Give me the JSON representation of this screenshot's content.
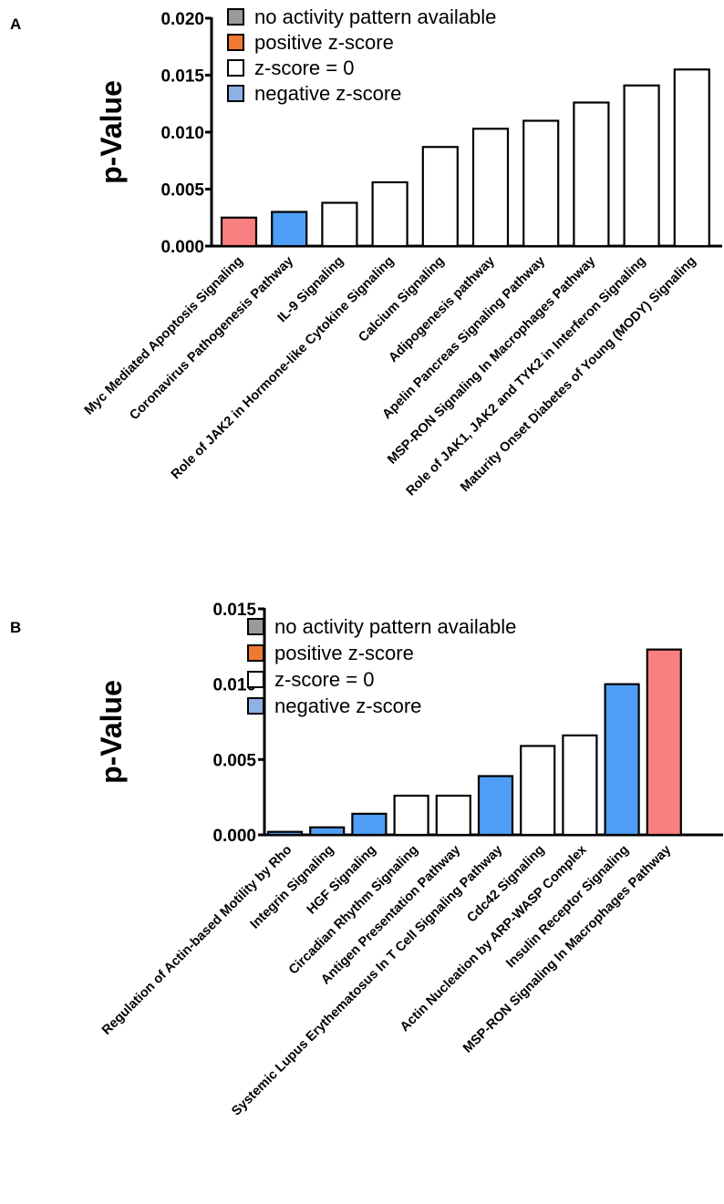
{
  "legend": {
    "items": [
      {
        "label": "no activity pattern available",
        "color": "#9a9a9a"
      },
      {
        "label": "positive z-score",
        "color": "#f07a32"
      },
      {
        "label": "z-score = 0",
        "color": "#ffffff"
      },
      {
        "label": "negative z-score",
        "color": "#8fb2e6"
      }
    ]
  },
  "chart_data": [
    {
      "panel": "A",
      "type": "bar",
      "ylabel": "p-Value",
      "ylim": [
        0,
        0.02
      ],
      "yticks": [
        "0.000",
        "0.005",
        "0.010",
        "0.015",
        "0.020"
      ],
      "grid": false,
      "legend_position": "top-left",
      "categories": [
        "Myc Mediated Apoptosis Signaling",
        "Coronavirus Pathogenesis Pathway",
        "IL-9 Signaling",
        "Role of JAK2 in Hormone-like Cytokine Signaling",
        "Calcium Signaling",
        "Adipogenesis pathway",
        "Apelin Pancreas Signaling Pathway",
        "MSP-RON Signaling In Macrophages Pathway",
        "Role of JAK1, JAK2 and TYK2 in Interferon Signaling",
        "Maturity Onset Diabetes of Young (MODY) Signaling"
      ],
      "values": [
        0.0025,
        0.003,
        0.0038,
        0.0056,
        0.0087,
        0.0103,
        0.011,
        0.0126,
        0.0141,
        0.0155
      ],
      "colors": [
        "#f87f7f",
        "#4f9ef5",
        "#ffffff",
        "#ffffff",
        "#ffffff",
        "#ffffff",
        "#ffffff",
        "#ffffff",
        "#ffffff",
        "#ffffff"
      ]
    },
    {
      "panel": "B",
      "type": "bar",
      "ylabel": "p-Value",
      "ylim": [
        0,
        0.015
      ],
      "yticks": [
        "0.000",
        "0.005",
        "0.010",
        "0.015"
      ],
      "grid": false,
      "legend_position": "top-left",
      "categories": [
        "Regulation of Actin-based Motility by Rho",
        "Integrin Signaling",
        "HGF Signaling",
        "Circadian Rhythm Signaling",
        "Antigen Presentation Pathway",
        "Systemic Lupus Erythematosus In T Cell Signaling Pathway",
        "Cdc42 Signaling",
        "Actin Nucleation by ARP-WASP Complex",
        "Insulin Receptor Signaling",
        "MSP-RON Signaling In Macrophages Pathway"
      ],
      "values": [
        0.0002,
        0.0005,
        0.0014,
        0.0026,
        0.0026,
        0.0039,
        0.0059,
        0.0066,
        0.01,
        0.0123
      ],
      "colors": [
        "#4f9ef5",
        "#4f9ef5",
        "#4f9ef5",
        "#ffffff",
        "#ffffff",
        "#4f9ef5",
        "#ffffff",
        "#ffffff",
        "#4f9ef5",
        "#f87f7f"
      ]
    }
  ]
}
